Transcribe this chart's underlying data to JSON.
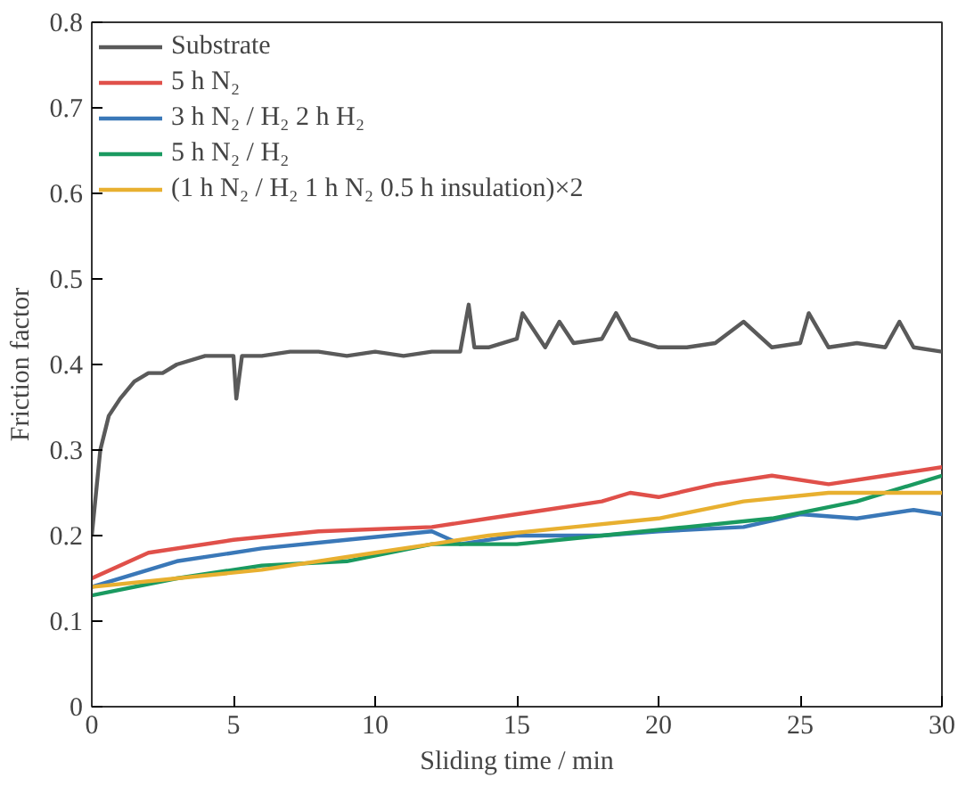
{
  "chart_data": {
    "type": "line",
    "xlabel": "Sliding time / min",
    "ylabel": "Friction factor",
    "xlim": [
      0,
      30
    ],
    "ylim": [
      0,
      0.8
    ],
    "xticks": [
      0,
      5,
      10,
      15,
      20,
      25,
      30
    ],
    "yticks": [
      0,
      0.1,
      0.2,
      0.3,
      0.4,
      0.5,
      0.6,
      0.7,
      0.8
    ],
    "grid": false,
    "legend": "top left",
    "line_style": "solid",
    "marker": "none",
    "series": [
      {
        "name": "Substrate",
        "color": "#5a5a5a",
        "x": [
          0,
          0.3,
          0.6,
          1,
          1.5,
          2,
          2.5,
          3,
          4,
          5,
          5.1,
          5.3,
          6,
          7,
          8,
          9,
          10,
          11,
          12,
          13,
          13.3,
          13.5,
          14,
          15,
          15.2,
          16,
          16.5,
          17,
          18,
          18.5,
          19,
          20,
          21,
          22,
          23,
          24,
          25,
          25.3,
          26,
          27,
          28,
          28.5,
          29,
          30
        ],
        "values": [
          0.2,
          0.3,
          0.34,
          0.36,
          0.38,
          0.39,
          0.39,
          0.4,
          0.41,
          0.41,
          0.36,
          0.41,
          0.41,
          0.415,
          0.415,
          0.41,
          0.415,
          0.41,
          0.415,
          0.415,
          0.47,
          0.42,
          0.42,
          0.43,
          0.46,
          0.42,
          0.45,
          0.425,
          0.43,
          0.46,
          0.43,
          0.42,
          0.42,
          0.425,
          0.45,
          0.42,
          0.425,
          0.46,
          0.42,
          0.425,
          0.42,
          0.45,
          0.42,
          0.415
        ]
      },
      {
        "name": "5 h N₂",
        "color": "#e0504a",
        "x": [
          0,
          2,
          5,
          8,
          12,
          14,
          16,
          18,
          19,
          20,
          22,
          24,
          26,
          28,
          30
        ],
        "values": [
          0.15,
          0.18,
          0.195,
          0.205,
          0.21,
          0.22,
          0.23,
          0.24,
          0.25,
          0.245,
          0.26,
          0.27,
          0.26,
          0.27,
          0.28
        ]
      },
      {
        "name": "3 h N₂ / H₂ 2 h H₂",
        "color": "#3a78b8",
        "x": [
          0,
          3,
          6,
          9,
          12,
          13,
          15,
          18,
          20,
          23,
          25,
          27,
          29,
          30
        ],
        "values": [
          0.14,
          0.17,
          0.185,
          0.195,
          0.205,
          0.19,
          0.2,
          0.2,
          0.205,
          0.21,
          0.225,
          0.22,
          0.23,
          0.225
        ]
      },
      {
        "name": "5 h N₂ / H₂",
        "color": "#1a9a60",
        "x": [
          0,
          3,
          6,
          9,
          12,
          15,
          18,
          21,
          24,
          27,
          30
        ],
        "values": [
          0.13,
          0.15,
          0.165,
          0.17,
          0.19,
          0.19,
          0.2,
          0.21,
          0.22,
          0.24,
          0.27
        ]
      },
      {
        "name": "(1 h N₂ / H₂ 1 h N₂ 0.5 h insulation)×2",
        "color": "#e8b030",
        "x": [
          0,
          3,
          6,
          9,
          12,
          14,
          17,
          20,
          23,
          26,
          28,
          30
        ],
        "values": [
          0.14,
          0.15,
          0.16,
          0.175,
          0.19,
          0.2,
          0.21,
          0.22,
          0.24,
          0.25,
          0.25,
          0.25
        ]
      }
    ]
  }
}
